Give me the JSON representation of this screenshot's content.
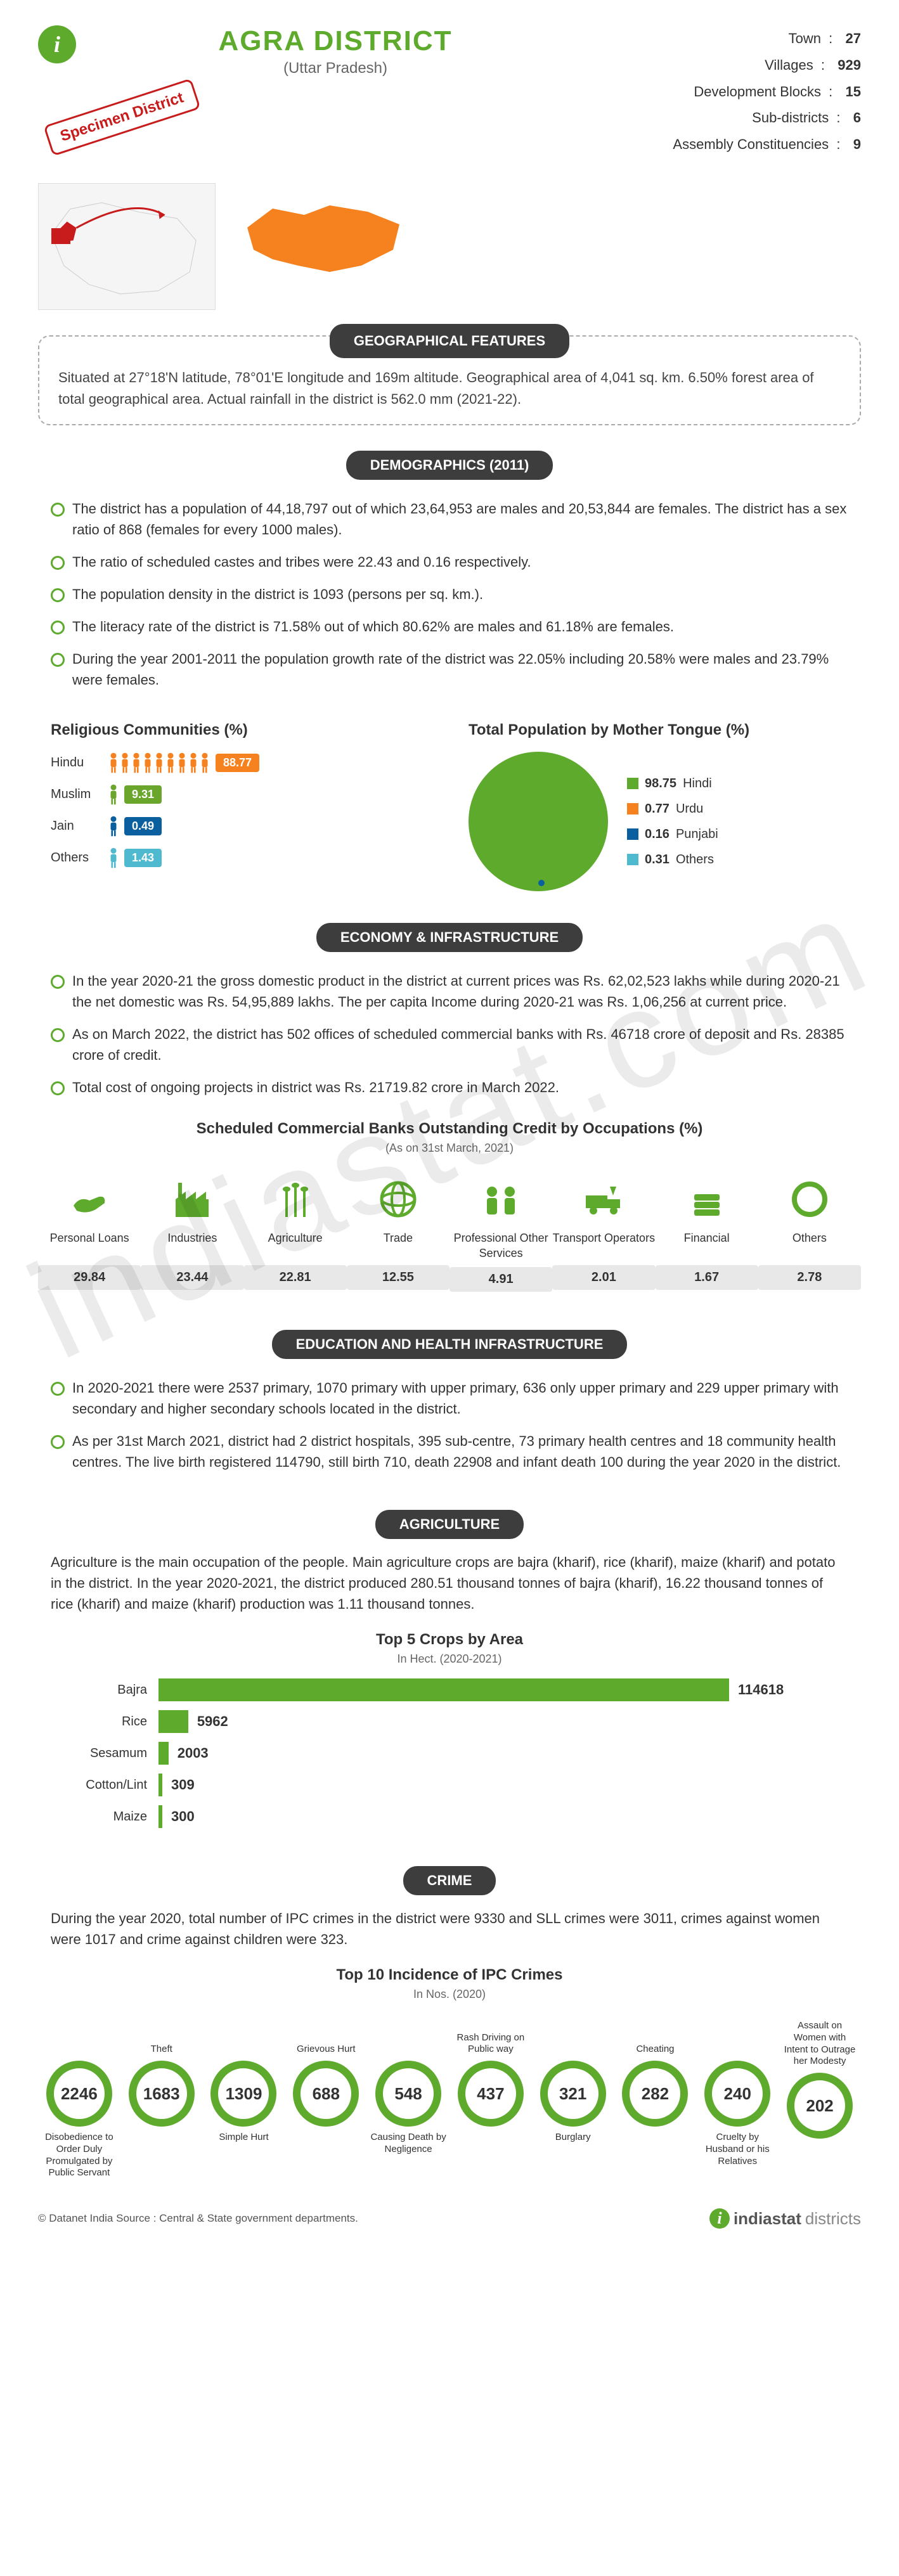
{
  "header": {
    "title": "AGRA DISTRICT",
    "subtitle": "(Uttar Pradesh)",
    "specimen": "Specimen District",
    "stats": [
      {
        "label": "Town",
        "value": "27"
      },
      {
        "label": "Villages",
        "value": "929"
      },
      {
        "label": "Development Blocks",
        "value": "15"
      },
      {
        "label": "Sub-districts",
        "value": "6"
      },
      {
        "label": "Assembly Constituencies",
        "value": "9"
      }
    ]
  },
  "colors": {
    "brand_green": "#5daa2d",
    "dark_banner": "#3d3d3d",
    "orange": "#f5821f",
    "green2": "#6aa62c",
    "blue": "#0a5f9e",
    "cyan": "#4fb9d0",
    "red": "#c81b1b",
    "gray_bg": "#e8e8e8"
  },
  "geo": {
    "banner": "GEOGRAPHICAL FEATURES",
    "text": "Situated at 27°18'N latitude, 78°01'E longitude and 169m altitude. Geographical area of 4,041 sq. km. 6.50% forest area of total geographical area. Actual rainfall in the district is 562.0 mm (2021-22)."
  },
  "demo": {
    "banner": "DEMOGRAPHICS (2011)",
    "bullets": [
      "The district has a population of 44,18,797 out of which 23,64,953 are males and 20,53,844 are females. The district has a sex ratio of 868 (females for every 1000 males).",
      "The ratio of scheduled castes and tribes were 22.43 and 0.16 respectively.",
      "The population density in the district is 1093 (persons per sq. km.).",
      "The literacy rate of the district is 71.58% out of which 80.62% are males and 61.18% are females.",
      "During the year 2001-2011 the population growth rate of the district was 22.05% including 20.58% were males and 23.79% were females."
    ],
    "religion_title": "Religious Communities (%)",
    "religion": [
      {
        "label": "Hindu",
        "pct": 88.77,
        "icons": 9,
        "color": "#f5821f"
      },
      {
        "label": "Muslim",
        "pct": 9.31,
        "icons": 1,
        "color": "#6aa62c"
      },
      {
        "label": "Jain",
        "pct": 0.49,
        "icons": 1,
        "color": "#0a5f9e"
      },
      {
        "label": "Others",
        "pct": 1.43,
        "icons": 1,
        "color": "#4fb9d0"
      }
    ],
    "tongue_title": "Total Population by Mother Tongue (%)",
    "tongue": [
      {
        "label": "Hindi",
        "pct": "98.75",
        "color": "#5daa2d"
      },
      {
        "label": "Urdu",
        "pct": "0.77",
        "color": "#f5821f"
      },
      {
        "label": "Punjabi",
        "pct": "0.16",
        "color": "#0a5f9e"
      },
      {
        "label": "Others",
        "pct": "0.31",
        "color": "#4fb9d0"
      }
    ]
  },
  "econ": {
    "banner": "ECONOMY & INFRASTRUCTURE",
    "bullets": [
      "In the year 2020-21 the gross domestic product in the district at current prices was Rs. 62,02,523 lakhs while during 2020-21 the net domestic was Rs. 54,95,889 lakhs. The per capita Income during 2020-21 was Rs. 1,06,256 at current price.",
      "As on March 2022, the district has 502 offices of scheduled commercial banks with Rs. 46718 crore of deposit and Rs. 28385 crore of credit.",
      "Total cost of ongoing projects in district was Rs. 21719.82 crore in March 2022."
    ],
    "credit_title": "Scheduled Commercial Banks Outstanding Credit by Occupations (%)",
    "credit_sub": "(As on 31st March, 2021)",
    "credit": [
      {
        "label": "Personal Loans",
        "val": "29.84",
        "icon": "hand"
      },
      {
        "label": "Industries",
        "val": "23.44",
        "icon": "factory"
      },
      {
        "label": "Agriculture",
        "val": "22.81",
        "icon": "wheat"
      },
      {
        "label": "Trade",
        "val": "12.55",
        "icon": "globe"
      },
      {
        "label": "Professional Other Services",
        "val": "4.91",
        "icon": "people"
      },
      {
        "label": "Transport Operators",
        "val": "2.01",
        "icon": "truck"
      },
      {
        "label": "Financial",
        "val": "1.67",
        "icon": "money"
      },
      {
        "label": "Others",
        "val": "2.78",
        "icon": "circle"
      }
    ]
  },
  "edu": {
    "banner": "EDUCATION AND HEALTH INFRASTRUCTURE",
    "bullets": [
      "In 2020-2021 there were 2537 primary, 1070 primary with upper primary, 636 only upper primary and 229 upper primary with secondary and higher secondary schools located in the district.",
      "As per 31st March 2021, district had 2 district hospitals, 395 sub-centre, 73 primary health centres and 18 community health centres. The live birth registered 114790, still birth 710, death 22908 and infant death 100 during the year 2020 in the district."
    ]
  },
  "agri": {
    "banner": "AGRICULTURE",
    "para": "Agriculture is the main occupation of the people. Main agriculture crops are bajra (kharif), rice (kharif), maize (kharif) and potato in the district. In the year 2020-2021, the district produced 280.51 thousand tonnes of bajra (kharif), 16.22 thousand tonnes of rice (kharif) and maize (kharif) production was 1.11 thousand tonnes.",
    "chart_title": "Top 5 Crops by Area",
    "chart_sub": "In Hect. (2020-2021)",
    "max": 114618,
    "crops": [
      {
        "label": "Bajra",
        "val": 114618
      },
      {
        "label": "Rice",
        "val": 5962
      },
      {
        "label": "Sesamum",
        "val": 2003
      },
      {
        "label": "Cotton/Lint",
        "val": 309
      },
      {
        "label": "Maize",
        "val": 300
      }
    ]
  },
  "crime": {
    "banner": "CRIME",
    "para": "During the year 2020, total number of IPC crimes in the district were 9330 and SLL crimes were 3011, crimes against women were 1017 and crime against children were 323.",
    "chart_title": "Top 10 Incidence of IPC Crimes",
    "chart_sub": "In Nos. (2020)",
    "items": [
      {
        "val": "2246",
        "label": "Disobedience to Order Duly Promulgated by Public Servant",
        "pos": "bottom"
      },
      {
        "val": "1683",
        "label": "Theft",
        "pos": "top"
      },
      {
        "val": "1309",
        "label": "Simple Hurt",
        "pos": "bottom"
      },
      {
        "val": "688",
        "label": "Grievous Hurt",
        "pos": "top"
      },
      {
        "val": "548",
        "label": "Causing Death by Negligence",
        "pos": "bottom"
      },
      {
        "val": "437",
        "label": "Rash Driving on Public way",
        "pos": "top"
      },
      {
        "val": "321",
        "label": "Burglary",
        "pos": "bottom"
      },
      {
        "val": "282",
        "label": "Cheating",
        "pos": "top"
      },
      {
        "val": "240",
        "label": "Cruelty by Husband or his Relatives",
        "pos": "bottom"
      },
      {
        "val": "202",
        "label": "Assault on Women with Intent to Outrage her Modesty",
        "pos": "top"
      }
    ]
  },
  "footer": {
    "copyright": "© Datanet India Source : Central & State government departments.",
    "brand1": "indiastat",
    "brand2": "districts"
  },
  "watermark": "indiastat.com"
}
